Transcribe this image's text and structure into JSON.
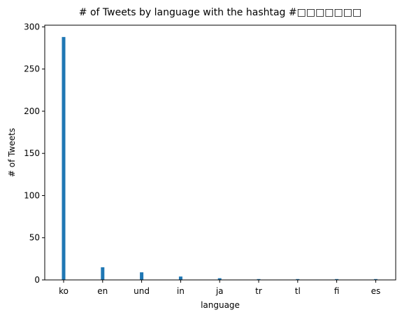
{
  "chart_data": {
    "type": "bar",
    "title": "# of Tweets by language with the hashtag #□□□□□□□",
    "xlabel": "language",
    "ylabel": "# of Tweets",
    "categories": [
      "ko",
      "en",
      "und",
      "in",
      "ja",
      "tr",
      "tl",
      "fi",
      "es"
    ],
    "values": [
      288,
      15,
      9,
      4,
      2,
      1,
      1,
      1,
      1
    ],
    "ylim": [
      0,
      302
    ],
    "yticks": [
      0,
      50,
      100,
      150,
      200,
      250,
      300
    ],
    "bar_color": "#1f77b4",
    "grid": false,
    "legend": "none"
  }
}
